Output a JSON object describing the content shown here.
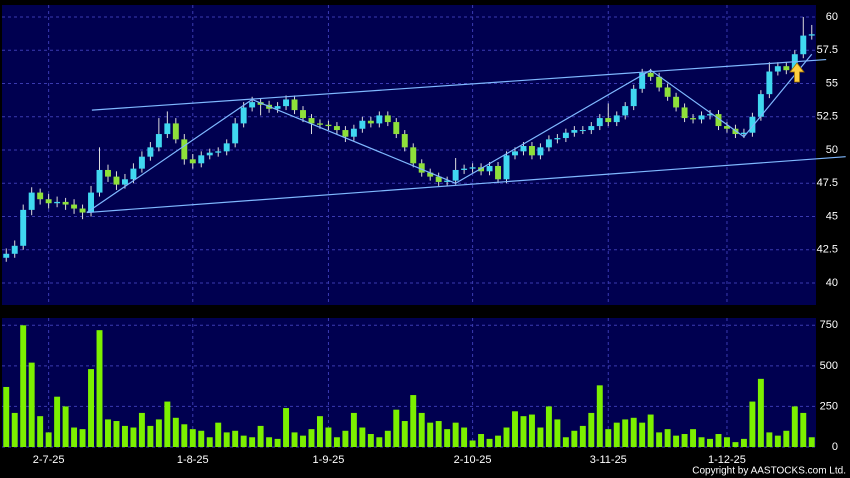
{
  "chart_data": [
    {
      "type": "candlestick",
      "open": [
        41.9,
        42.2,
        42.8,
        45.5,
        46.8,
        46.3,
        46.0,
        46.1,
        45.9,
        45.6,
        45.3,
        46.8,
        48.5,
        48.0,
        47.4,
        47.8,
        48.6,
        49.5,
        50.2,
        51.2,
        52.0,
        50.8,
        49.3,
        49.0,
        49.6,
        49.8,
        49.9,
        50.5,
        52.0,
        53.2,
        53.6,
        53.4,
        53.1,
        53.3,
        53.8,
        53.0,
        52.4,
        52.0,
        51.9,
        51.8,
        51.5,
        51.0,
        51.6,
        52.2,
        52.0,
        52.6,
        52.1,
        51.2,
        50.2,
        49.0,
        48.3,
        48.0,
        47.6,
        47.7,
        48.5,
        48.6,
        48.7,
        48.4,
        48.8,
        47.8,
        49.6,
        49.9,
        50.3,
        49.6,
        50.2,
        50.8,
        50.9,
        51.3,
        51.5,
        51.5,
        51.8,
        52.4,
        52.1,
        52.6,
        53.3,
        54.6,
        55.8,
        55.5,
        54.7,
        54.0,
        53.2,
        52.4,
        52.3,
        52.6,
        52.7,
        51.8,
        51.6,
        51.2,
        51.3,
        52.5,
        54.2,
        55.9,
        56.3,
        56.0,
        57.2,
        58.6
      ],
      "high": [
        42.6,
        43.2,
        45.9,
        47.2,
        47.1,
        46.7,
        46.5,
        46.4,
        46.3,
        45.9,
        47.3,
        50.2,
        48.9,
        48.4,
        48.2,
        49.0,
        49.9,
        50.6,
        52.4,
        52.9,
        52.4,
        51.2,
        49.7,
        49.9,
        50.1,
        50.2,
        50.8,
        52.4,
        53.6,
        54.0,
        53.9,
        53.7,
        53.6,
        54.1,
        54.1,
        53.3,
        52.7,
        52.3,
        52.2,
        52.1,
        51.8,
        51.9,
        52.5,
        52.5,
        52.9,
        52.9,
        52.4,
        51.5,
        50.5,
        49.3,
        48.6,
        48.3,
        48.0,
        49.4,
        48.9,
        49.0,
        49.0,
        49.1,
        49.1,
        49.9,
        50.2,
        50.6,
        50.6,
        50.5,
        51.1,
        51.2,
        51.6,
        51.8,
        51.8,
        52.1,
        52.7,
        53.5,
        52.9,
        53.6,
        54.9,
        56.1,
        56.1,
        55.8,
        55.0,
        54.3,
        53.5,
        52.7,
        52.9,
        53.0,
        53.0,
        52.1,
        51.9,
        51.6,
        52.8,
        54.5,
        56.6,
        56.6,
        56.6,
        57.5,
        60.0,
        59.4
      ],
      "low": [
        41.6,
        41.9,
        42.5,
        45.1,
        45.9,
        45.6,
        45.7,
        45.5,
        45.2,
        44.8,
        45.0,
        46.5,
        47.6,
        47.0,
        47.1,
        47.5,
        48.3,
        49.2,
        49.9,
        50.9,
        50.5,
        48.9,
        48.6,
        48.7,
        49.3,
        49.5,
        49.6,
        50.2,
        51.7,
        52.9,
        52.6,
        52.8,
        52.8,
        53.0,
        52.7,
        52.1,
        51.2,
        51.6,
        51.5,
        51.2,
        50.6,
        50.7,
        51.3,
        51.7,
        51.7,
        51.8,
        50.9,
        49.9,
        48.7,
        48.0,
        47.7,
        47.3,
        47.3,
        47.4,
        48.2,
        48.3,
        48.1,
        48.1,
        47.5,
        47.5,
        49.3,
        49.6,
        49.3,
        49.3,
        49.9,
        50.5,
        50.6,
        51.0,
        51.2,
        51.2,
        51.5,
        51.8,
        51.8,
        52.3,
        53.0,
        54.3,
        55.2,
        54.4,
        53.7,
        52.9,
        52.1,
        52.0,
        52.0,
        52.3,
        51.5,
        51.3,
        50.9,
        50.9,
        51.0,
        52.2,
        53.9,
        55.6,
        55.7,
        55.7,
        56.9,
        58.3
      ],
      "close": [
        42.2,
        42.8,
        45.5,
        46.8,
        46.3,
        46.0,
        46.1,
        45.9,
        45.6,
        45.3,
        46.8,
        48.5,
        48.0,
        47.4,
        47.8,
        48.6,
        49.5,
        50.2,
        51.2,
        52.0,
        50.8,
        49.3,
        49.0,
        49.6,
        49.8,
        49.9,
        50.5,
        52.0,
        53.2,
        53.6,
        53.4,
        53.1,
        53.3,
        53.8,
        53.0,
        52.4,
        52.0,
        51.9,
        51.8,
        51.5,
        51.0,
        51.6,
        52.2,
        52.0,
        52.6,
        52.1,
        51.2,
        50.2,
        49.0,
        48.3,
        48.0,
        47.6,
        47.7,
        48.5,
        48.6,
        48.7,
        48.4,
        48.8,
        47.8,
        49.6,
        49.9,
        50.3,
        49.6,
        50.2,
        50.8,
        50.9,
        51.3,
        51.5,
        51.5,
        51.8,
        52.4,
        52.1,
        52.6,
        53.3,
        54.6,
        55.8,
        55.5,
        54.7,
        54.0,
        53.2,
        52.4,
        52.3,
        52.6,
        52.7,
        51.8,
        51.6,
        51.2,
        51.3,
        52.5,
        54.2,
        55.9,
        56.3,
        56.0,
        57.2,
        58.6,
        58.7
      ],
      "up_color": "#40d8f0",
      "down_color": "#8ee03a",
      "ylim": [
        38.35,
        60.9
      ],
      "yticks": [
        40,
        42.5,
        45,
        47.5,
        50,
        52.5,
        55,
        57.5,
        60
      ],
      "trendlines": [
        [
          [
            10.1,
            53.0
          ],
          [
            96.7,
            56.8
          ]
        ],
        [
          [
            9.5,
            45.3
          ],
          [
            99,
            49.5
          ]
        ],
        [
          [
            9.5,
            45.3
          ],
          [
            29,
            53.8
          ]
        ],
        [
          [
            29,
            53.8
          ],
          [
            53,
            47.5
          ]
        ],
        [
          [
            53,
            47.5
          ],
          [
            76,
            56.0
          ]
        ],
        [
          [
            76,
            56.0
          ],
          [
            87,
            51.0
          ]
        ],
        [
          [
            87,
            51.0
          ],
          [
            95,
            57.2
          ]
        ]
      ],
      "trendline_color": "#7fb8ff",
      "grid": true
    },
    {
      "type": "bar",
      "categories": [
        null,
        null,
        null,
        null,
        null,
        "2-7-25",
        null,
        null,
        null,
        null,
        null,
        null,
        null,
        null,
        null,
        null,
        null,
        null,
        null,
        null,
        null,
        null,
        "1-8-25",
        null,
        null,
        null,
        null,
        null,
        null,
        null,
        null,
        null,
        null,
        null,
        null,
        null,
        null,
        null,
        "1-9-25",
        null,
        null,
        null,
        null,
        null,
        null,
        null,
        null,
        null,
        null,
        null,
        null,
        null,
        null,
        null,
        null,
        "2-10-25",
        null,
        null,
        null,
        null,
        null,
        null,
        null,
        null,
        null,
        null,
        null,
        null,
        null,
        null,
        null,
        "3-11-25",
        null,
        null,
        null,
        null,
        null,
        null,
        null,
        null,
        null,
        null,
        null,
        null,
        null,
        "1-12-25",
        null,
        null,
        null,
        null,
        null,
        null,
        null,
        null,
        null,
        null
      ],
      "values": [
        370,
        210,
        750,
        520,
        190,
        90,
        310,
        250,
        120,
        110,
        480,
        720,
        170,
        160,
        130,
        120,
        210,
        130,
        170,
        280,
        180,
        140,
        110,
        100,
        60,
        150,
        90,
        100,
        70,
        60,
        130,
        60,
        50,
        240,
        90,
        70,
        110,
        190,
        120,
        60,
        100,
        210,
        120,
        80,
        60,
        100,
        230,
        160,
        320,
        210,
        150,
        160,
        110,
        150,
        120,
        40,
        80,
        50,
        70,
        120,
        220,
        190,
        200,
        120,
        250,
        170,
        60,
        100,
        130,
        210,
        380,
        110,
        150,
        170,
        180,
        150,
        200,
        90,
        110,
        70,
        80,
        110,
        60,
        50,
        80,
        60,
        30,
        50,
        280,
        420,
        90,
        70,
        100,
        250,
        210,
        60
      ],
      "color": "#7cf000",
      "ylim": [
        0,
        795
      ],
      "yticks": [
        0,
        250,
        500,
        750
      ],
      "grid": true
    }
  ],
  "copyright": "Copyright by AASTOCKS.com Ltd."
}
